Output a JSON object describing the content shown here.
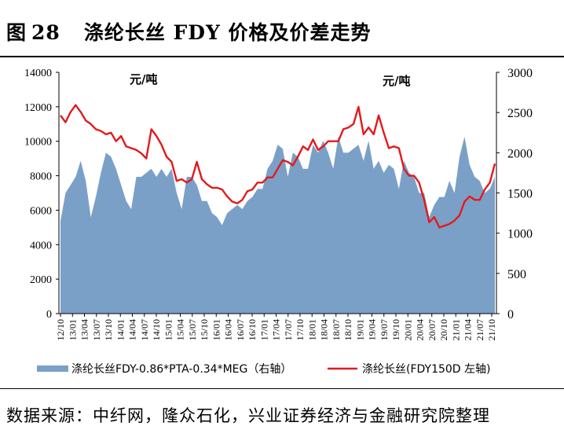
{
  "figure": {
    "label": "图",
    "number": "28",
    "title": "涤纶长丝 FDY 价格及价差走势"
  },
  "source": "数据来源：中纤网，隆众石化，兴业证券经济与金融研究院整理",
  "chart_data": {
    "type": "area+line",
    "left_unit_label": "元/吨",
    "right_unit_label": "元/吨",
    "left_axis": {
      "ylim": [
        0,
        14000
      ],
      "ticks": [
        "0",
        "2000",
        "4000",
        "6000",
        "8000",
        "10000",
        "12000",
        "14000"
      ]
    },
    "right_axis": {
      "ylim": [
        0,
        3000
      ],
      "ticks": [
        "0",
        "500",
        "1000",
        "1500",
        "2000",
        "2500",
        "3000"
      ]
    },
    "x_tick_labels": [
      "12/10",
      "13/01",
      "13/04",
      "13/07",
      "13/10",
      "14/01",
      "14/04",
      "14/07",
      "14/10",
      "15/01",
      "15/04",
      "15/07",
      "15/10",
      "16/01",
      "16/04",
      "16/07",
      "16/10",
      "17/01",
      "17/04",
      "17/07",
      "17/10",
      "18/01",
      "18/04",
      "18/07",
      "18/10",
      "19/01",
      "19/04",
      "19/07",
      "19/10",
      "20/01",
      "20/04",
      "20/07",
      "20/10",
      "21/01",
      "21/04",
      "21/07",
      "21/10"
    ],
    "series": [
      {
        "name": "涤纶长丝FDY-0.86*PTA-0.34*MEG（右轴）",
        "axis": "right",
        "kind": "area",
        "color": "#7ba0c8",
        "values": [
          1150,
          1500,
          1600,
          1700,
          1900,
          1650,
          1200,
          1450,
          1750,
          2000,
          1950,
          1800,
          1600,
          1400,
          1300,
          1700,
          1700,
          1750,
          1800,
          1700,
          1800,
          1700,
          1800,
          1500,
          1300,
          1700,
          1700,
          1600,
          1400,
          1400,
          1250,
          1200,
          1100,
          1250,
          1300,
          1350,
          1300,
          1400,
          1450,
          1550,
          1550,
          1800,
          1900,
          2100,
          2050,
          1700,
          2000,
          1950,
          1800,
          1800,
          2100,
          2000,
          2150,
          2000,
          1800,
          2200,
          2000,
          2000,
          2050,
          2100,
          1900,
          2150,
          1800,
          1900,
          1750,
          1850,
          1800,
          1550,
          1900,
          1750,
          1700,
          1500,
          1500,
          1200,
          1350,
          1450,
          1450,
          1650,
          1500,
          1950,
          2200,
          1850,
          1700,
          1650,
          1500,
          1550,
          1700
        ]
      },
      {
        "name": "涤纶长丝(FDY150D 左轴)",
        "axis": "left",
        "kind": "line",
        "color": "#e3191c",
        "values": [
          11500,
          11100,
          11700,
          12100,
          11700,
          11200,
          11000,
          10700,
          10600,
          10400,
          10500,
          10000,
          10300,
          9700,
          9600,
          9500,
          9300,
          9000,
          10700,
          10300,
          9800,
          9100,
          8800,
          7700,
          7800,
          7600,
          7800,
          8800,
          7800,
          7500,
          7300,
          7300,
          7200,
          6800,
          6500,
          6400,
          6600,
          7100,
          7200,
          7600,
          7600,
          7900,
          7900,
          8400,
          8900,
          8800,
          8600,
          9100,
          9700,
          9500,
          10100,
          9500,
          9700,
          10000,
          10000,
          10000,
          10700,
          10800,
          11000,
          12000,
          10400,
          10800,
          10400,
          11500,
          10500,
          9600,
          9700,
          9600,
          8400,
          8000,
          8000,
          7600,
          6600,
          5300,
          5600,
          5000,
          5100,
          5200,
          5400,
          5700,
          6500,
          6800,
          6600,
          6600,
          7200,
          7600,
          8700
        ]
      }
    ],
    "legend": [
      {
        "label": "涤纶长丝FDY-0.86*PTA-0.34*MEG（右轴）",
        "color": "#7ba0c8",
        "kind": "area"
      },
      {
        "label": "涤纶长丝(FDY150D 左轴)",
        "color": "#e3191c",
        "kind": "line"
      }
    ],
    "legend_position": "bottom"
  }
}
